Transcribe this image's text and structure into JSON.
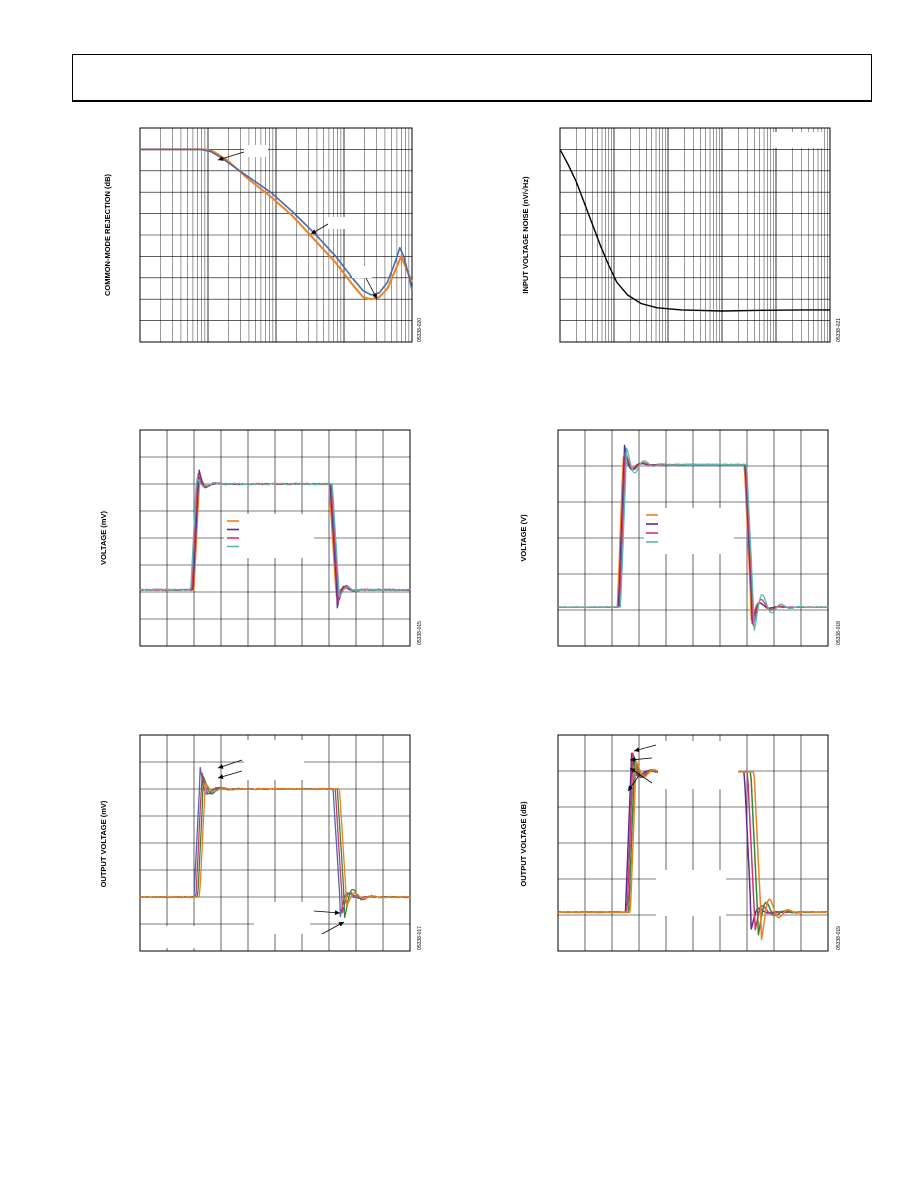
{
  "page": {
    "header_text": ""
  },
  "charts": [
    {
      "id": "cmrr",
      "ylabel": "COMMON-MODE REJECTION (dB)",
      "fig_id": "05338-020"
    },
    {
      "id": "noise",
      "ylabel": "INPUT VOLTAGE NOISE (nV/√Hz)",
      "fig_id": "05338-021"
    },
    {
      "id": "small_pulse",
      "ylabel": "VOLTAGE (mV)",
      "fig_id": "05338-015"
    },
    {
      "id": "large_pulse",
      "ylabel": "VOLTAGE (V)",
      "fig_id": "05338-018"
    },
    {
      "id": "out_mv",
      "ylabel": "OUTPUT VOLTAGE (mV)",
      "fig_id": "05338-017"
    },
    {
      "id": "out_db",
      "ylabel": "OUTPUT VOLTAGE (dB)",
      "fig_id": "05338-019"
    }
  ],
  "colors": {
    "orange": "#f07f22",
    "blue": "#4a6aa8",
    "purple": "#5a2d91",
    "magenta": "#d6336c",
    "teal": "#5cb8a8",
    "green": "#2d8a3a",
    "black": "#000000"
  },
  "chart_data": [
    {
      "type": "line",
      "id": "cmrr",
      "title": "",
      "xlabel": "",
      "ylabel": "COMMON-MODE REJECTION (dB)",
      "x_scale": "log",
      "grid": true,
      "note": "tick labels not visible in image; values expressed relative to plot (0-1 normalized)",
      "series": [
        {
          "color": "orange",
          "points": [
            [
              0,
              0.1
            ],
            [
              0.25,
              0.1
            ],
            [
              0.3,
              0.12
            ],
            [
              0.45,
              0.33
            ],
            [
              0.62,
              0.5
            ],
            [
              0.78,
              0.72
            ],
            [
              0.85,
              0.8
            ],
            [
              0.92,
              0.78
            ],
            [
              0.97,
              0.6
            ],
            [
              1.0,
              0.72
            ]
          ]
        },
        {
          "color": "blue",
          "points": [
            [
              0,
              0.1
            ],
            [
              0.22,
              0.1
            ],
            [
              0.28,
              0.12
            ],
            [
              0.45,
              0.31
            ],
            [
              0.62,
              0.47
            ],
            [
              0.78,
              0.7
            ],
            [
              0.85,
              0.77
            ],
            [
              0.92,
              0.75
            ],
            [
              0.97,
              0.56
            ],
            [
              1.0,
              0.76
            ]
          ]
        }
      ]
    },
    {
      "type": "line",
      "id": "noise",
      "title": "",
      "xlabel": "",
      "ylabel": "INPUT VOLTAGE NOISE (nV/√Hz)",
      "x_scale": "log",
      "grid": true,
      "series": [
        {
          "color": "black",
          "points": [
            [
              0,
              0.1
            ],
            [
              0.06,
              0.25
            ],
            [
              0.15,
              0.55
            ],
            [
              0.25,
              0.78
            ],
            [
              0.4,
              0.84
            ],
            [
              0.6,
              0.85
            ],
            [
              1.0,
              0.85
            ]
          ]
        }
      ]
    },
    {
      "type": "line",
      "id": "small_pulse",
      "title": "",
      "xlabel": "",
      "ylabel": "VOLTAGE (mV)",
      "grid": true,
      "series": [
        {
          "color": "orange"
        },
        {
          "color": "purple"
        },
        {
          "color": "magenta"
        },
        {
          "color": "teal"
        }
      ]
    },
    {
      "type": "line",
      "id": "large_pulse",
      "title": "",
      "xlabel": "",
      "ylabel": "VOLTAGE (V)",
      "grid": true,
      "series": [
        {
          "color": "orange"
        },
        {
          "color": "purple"
        },
        {
          "color": "magenta"
        },
        {
          "color": "teal"
        }
      ]
    },
    {
      "type": "line",
      "id": "out_mv",
      "title": "",
      "xlabel": "",
      "ylabel": "OUTPUT VOLTAGE (mV)",
      "grid": true,
      "series": [
        {
          "color": "blue"
        },
        {
          "color": "magenta"
        },
        {
          "color": "green"
        },
        {
          "color": "orange"
        }
      ]
    },
    {
      "type": "line",
      "id": "out_db",
      "title": "",
      "xlabel": "",
      "ylabel": "OUTPUT VOLTAGE (dB)",
      "grid": true,
      "series": [
        {
          "color": "purple"
        },
        {
          "color": "magenta"
        },
        {
          "color": "green"
        },
        {
          "color": "orange"
        }
      ]
    }
  ]
}
